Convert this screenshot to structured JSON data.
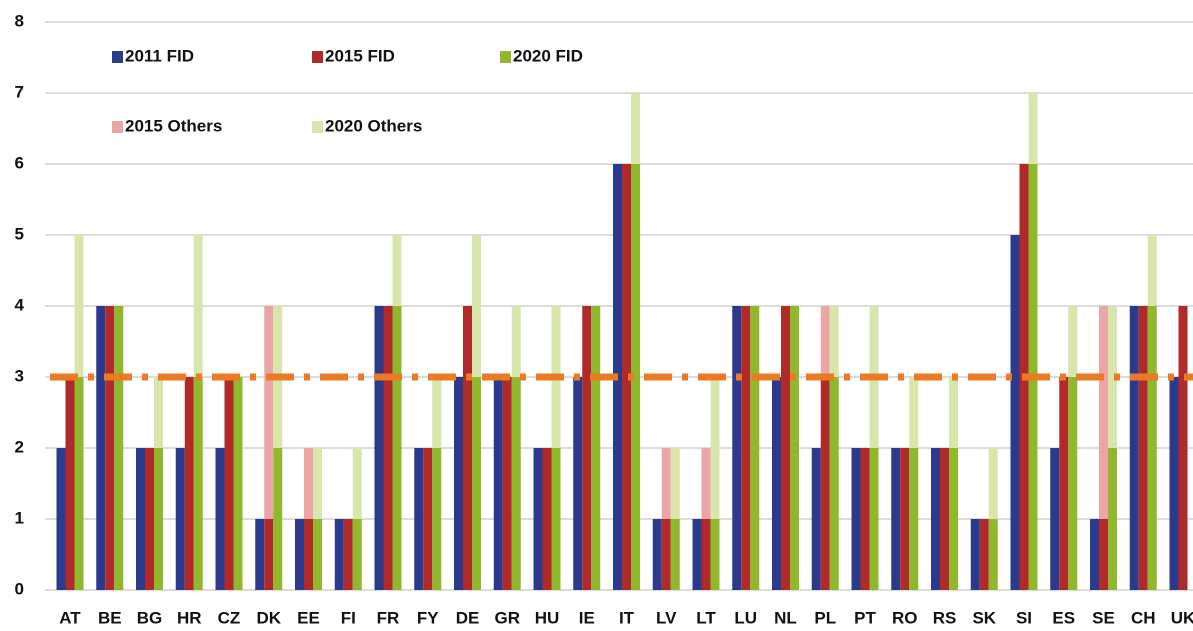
{
  "chart_data": {
    "type": "bar",
    "categories": [
      "AT",
      "BE",
      "BG",
      "HR",
      "CZ",
      "DK",
      "EE",
      "FI",
      "FR",
      "FY",
      "DE",
      "GR",
      "HU",
      "IE",
      "IT",
      "LV",
      "LT",
      "LU",
      "NL",
      "PL",
      "PT",
      "RO",
      "RS",
      "SK",
      "SI",
      "ES",
      "SE",
      "CH",
      "UK"
    ],
    "series": [
      {
        "name": "2011 FID",
        "color": "#2b3a8c",
        "values": [
          2,
          4,
          2,
          2,
          2,
          1,
          1,
          1,
          4,
          2,
          3,
          3,
          2,
          3,
          6,
          1,
          1,
          4,
          3,
          2,
          2,
          2,
          2,
          1,
          5,
          2,
          1,
          4,
          3
        ]
      },
      {
        "name": "2015 FID",
        "color": "#b02a2a",
        "values": [
          3,
          4,
          2,
          3,
          3,
          1,
          1,
          1,
          4,
          2,
          4,
          3,
          2,
          4,
          6,
          1,
          1,
          4,
          4,
          3,
          2,
          2,
          2,
          1,
          6,
          3,
          1,
          4,
          4
        ]
      },
      {
        "name": "2020 FID",
        "color": "#8fb82c",
        "values": [
          3,
          4,
          2,
          3,
          3,
          2,
          1,
          1,
          4,
          2,
          3,
          3,
          2,
          4,
          6,
          1,
          1,
          4,
          4,
          3,
          2,
          2,
          2,
          1,
          6,
          3,
          2,
          4,
          null
        ]
      },
      {
        "name": "2015 Others",
        "color": "#eaa6a6",
        "values": [
          0,
          0,
          0,
          0,
          0,
          3,
          1,
          0,
          0,
          0,
          0,
          0,
          0,
          0,
          0,
          1,
          1,
          0,
          0,
          1,
          0,
          0,
          0,
          0,
          0,
          0,
          3,
          0,
          null
        ]
      },
      {
        "name": "2020 Others",
        "color": "#d9e6ab",
        "values": [
          2,
          0,
          1,
          2,
          0,
          2,
          1,
          1,
          1,
          1,
          2,
          1,
          2,
          0,
          1,
          1,
          2,
          0,
          0,
          1,
          2,
          1,
          1,
          1,
          1,
          1,
          2,
          1,
          null
        ]
      }
    ],
    "reference_line": {
      "value": 3,
      "color": "#ea7a24"
    },
    "ylim": [
      0,
      8
    ],
    "yticks": [
      0,
      1,
      2,
      3,
      4,
      5,
      6,
      7,
      8
    ],
    "grid": true
  }
}
